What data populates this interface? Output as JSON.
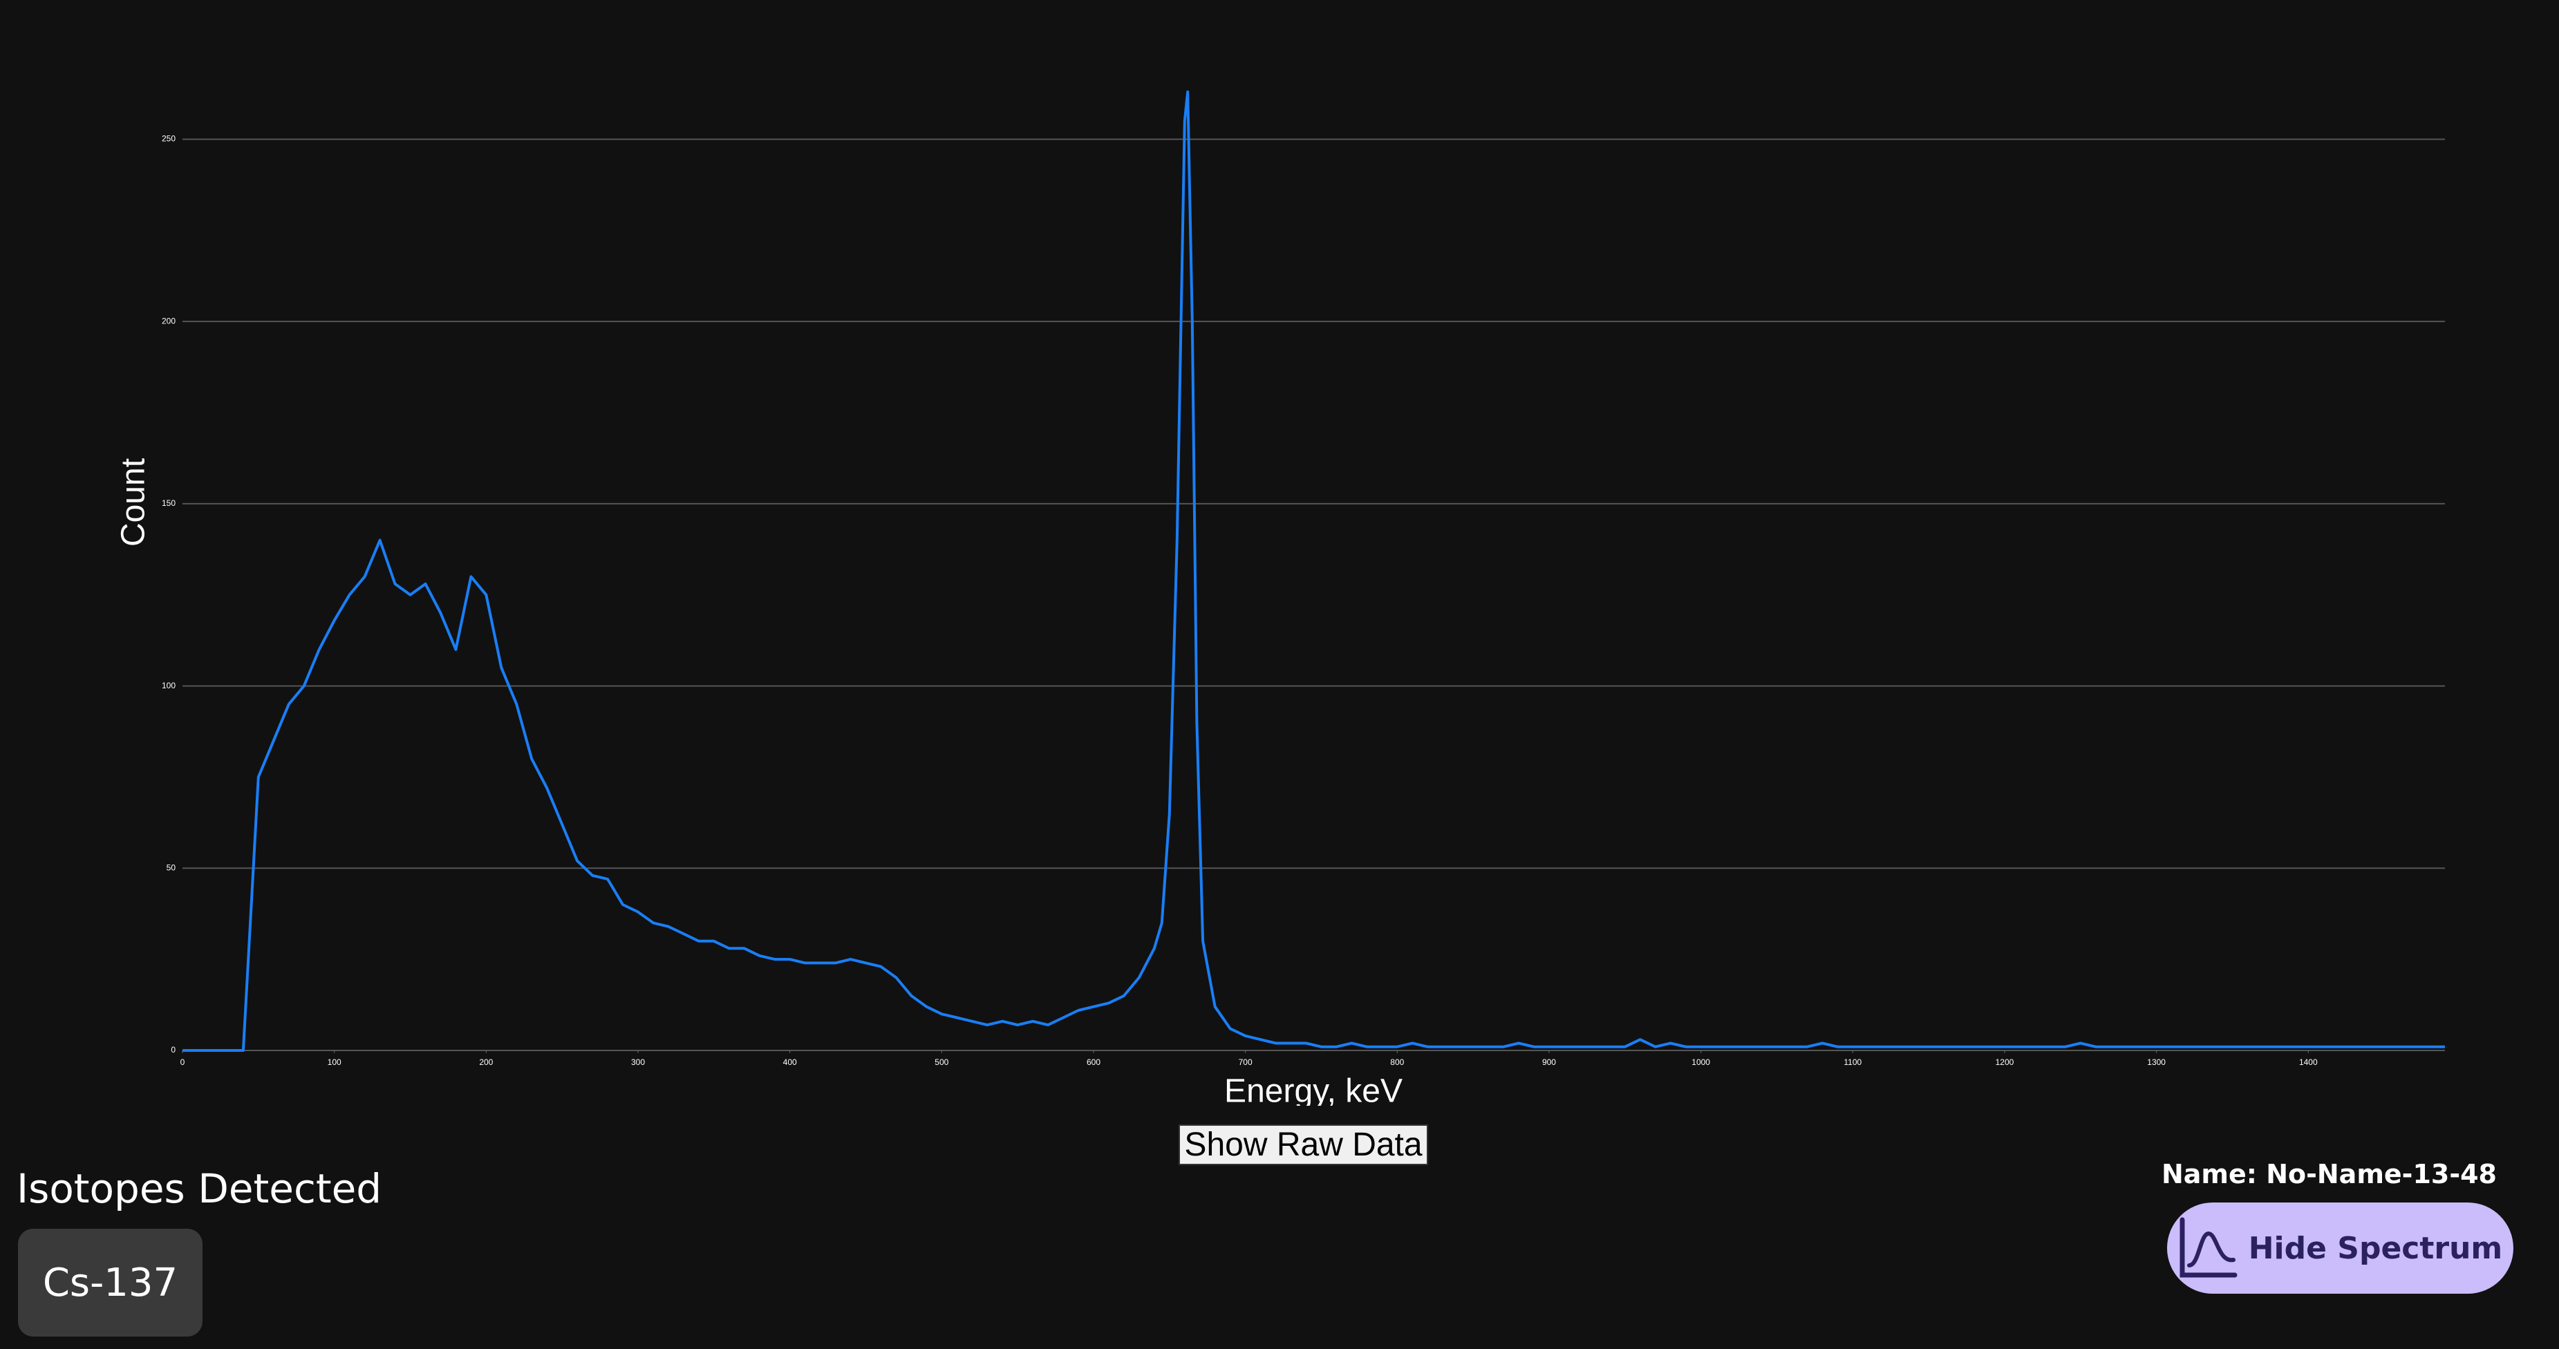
{
  "chart_data": {
    "type": "line",
    "x_label": "Energy, keV",
    "y_label": "Count",
    "x": [
      0,
      10,
      20,
      30,
      40,
      50,
      60,
      70,
      80,
      90,
      100,
      110,
      120,
      130,
      140,
      150,
      160,
      170,
      180,
      190,
      200,
      210,
      220,
      230,
      240,
      250,
      260,
      270,
      280,
      290,
      300,
      310,
      320,
      330,
      340,
      350,
      360,
      370,
      380,
      390,
      400,
      410,
      420,
      430,
      440,
      450,
      460,
      470,
      480,
      490,
      500,
      510,
      520,
      530,
      540,
      550,
      560,
      570,
      580,
      590,
      600,
      610,
      620,
      630,
      640,
      645,
      650,
      655,
      660,
      662,
      665,
      668,
      672,
      680,
      690,
      700,
      710,
      720,
      730,
      740,
      750,
      760,
      770,
      780,
      790,
      800,
      810,
      820,
      830,
      840,
      850,
      860,
      870,
      880,
      890,
      900,
      910,
      920,
      930,
      940,
      950,
      960,
      970,
      980,
      990,
      1000,
      1010,
      1020,
      1030,
      1040,
      1050,
      1060,
      1070,
      1080,
      1090,
      1100,
      1110,
      1120,
      1130,
      1140,
      1150,
      1160,
      1170,
      1180,
      1190,
      1200,
      1210,
      1220,
      1230,
      1240,
      1250,
      1260,
      1270,
      1280,
      1290,
      1300,
      1310,
      1320,
      1330,
      1340,
      1350,
      1360,
      1370,
      1380,
      1390,
      1400,
      1410,
      1420,
      1430,
      1440,
      1450,
      1460,
      1470,
      1480,
      1490
    ],
    "values": [
      0,
      0,
      0,
      0,
      0,
      75,
      85,
      95,
      100,
      110,
      118,
      125,
      130,
      140,
      128,
      125,
      128,
      120,
      110,
      130,
      125,
      105,
      95,
      80,
      72,
      62,
      52,
      48,
      47,
      40,
      38,
      35,
      34,
      32,
      30,
      30,
      28,
      28,
      26,
      25,
      25,
      24,
      24,
      24,
      25,
      24,
      23,
      20,
      15,
      12,
      10,
      9,
      8,
      7,
      8,
      7,
      8,
      7,
      9,
      11,
      12,
      13,
      15,
      20,
      28,
      35,
      65,
      140,
      255,
      263,
      200,
      90,
      30,
      12,
      6,
      4,
      3,
      2,
      2,
      2,
      1,
      1,
      2,
      1,
      1,
      1,
      2,
      1,
      1,
      1,
      1,
      1,
      1,
      2,
      1,
      1,
      1,
      1,
      1,
      1,
      1,
      3,
      1,
      2,
      1,
      1,
      1,
      1,
      1,
      1,
      1,
      1,
      1,
      2,
      1,
      1,
      1,
      1,
      1,
      1,
      1,
      1,
      1,
      1,
      1,
      1,
      1,
      1,
      1,
      1,
      2,
      1,
      1,
      1,
      1,
      1,
      1,
      1,
      1,
      1,
      1,
      1,
      1,
      1,
      1,
      1,
      1,
      1,
      1,
      1,
      1,
      1,
      1,
      1,
      1
    ],
    "color": "#1a7ef5",
    "xlim": [
      0,
      1490
    ],
    "ylim": [
      0,
      270
    ],
    "xticks": [
      0,
      100,
      200,
      300,
      400,
      500,
      600,
      700,
      800,
      900,
      1000,
      1100,
      1200,
      1300,
      1400
    ],
    "yticks": [
      0,
      50,
      100,
      150,
      200,
      250
    ],
    "grid": true
  },
  "controls": {
    "show_raw_data": "Show Raw Data",
    "hide_spectrum": "Hide Spectrum"
  },
  "isotopes": {
    "title": "Isotopes Detected",
    "items": [
      "Cs-137"
    ]
  },
  "name": "Name: No-Name-13-48"
}
